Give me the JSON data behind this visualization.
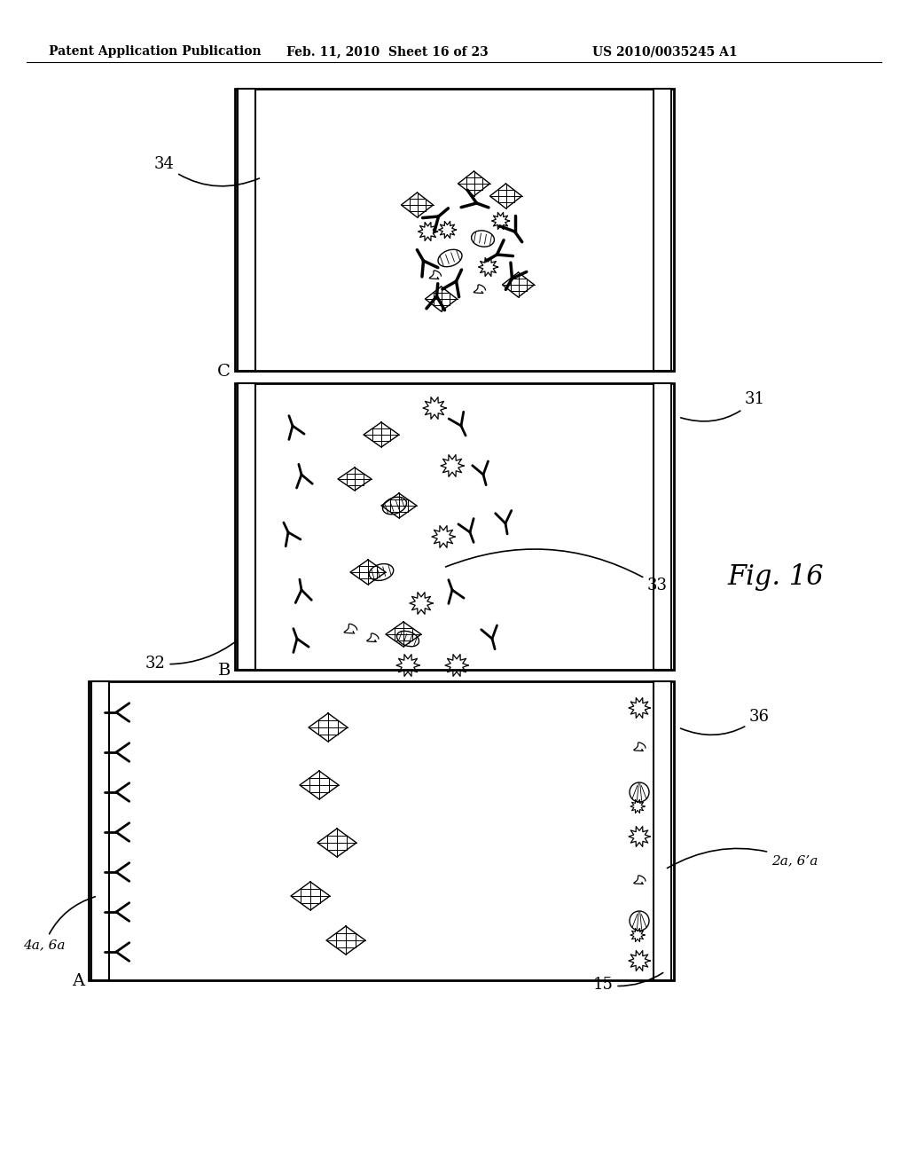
{
  "header_left": "Patent Application Publication",
  "header_mid": "Feb. 11, 2010  Sheet 16 of 23",
  "header_right": "US 2010/0035245 A1",
  "fig_label": "Fig. 16",
  "panel_C_label": "C",
  "panel_B_label": "B",
  "panel_A_label": "A",
  "label_34": "34",
  "label_31": "31",
  "label_32": "32",
  "label_33": "33",
  "label_36": "36",
  "label_4a6a": "4a, 6a",
  "label_2a6a": "2a, 6’a",
  "label_15": "15",
  "bg_color": "#ffffff",
  "line_color": "#000000"
}
